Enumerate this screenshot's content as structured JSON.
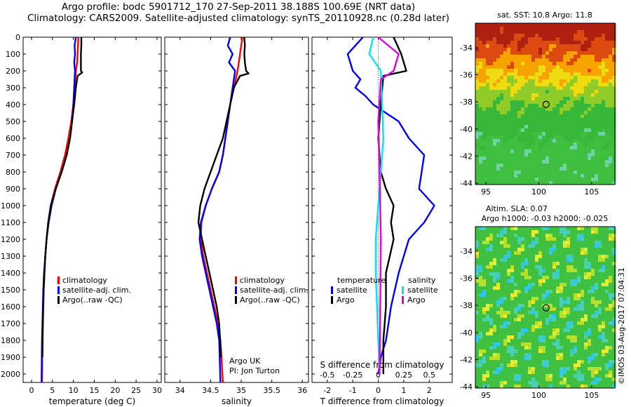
{
  "header": {
    "line1": "Argo profile: bodc 5901712_170 27-Sep-2011 38.188S 100.69E (NRT data)",
    "line2": "Climatology: CARS2009. Satellite-adjusted climatology: synTS_20110928.nc (0.28d later)"
  },
  "timestamp": "©IMOS 03-Aug-2017 07:04:31",
  "colors": {
    "red": "#ff0000",
    "blue": "#0000ff",
    "black": "#000000",
    "cyan": "#00e5ee",
    "magenta": "#e000e0"
  },
  "legends": {
    "temp": [
      "climatology",
      "satellite-adj. clim.",
      "Argo(..raw -QC)"
    ],
    "sal": [
      "climatology",
      "satellite-adj. clim.",
      "Argo(..raw -QC)"
    ],
    "diff_headers": [
      "temperature",
      "salinity"
    ],
    "diff_items": [
      "satellite",
      "Argo",
      "satellite",
      "Argo"
    ]
  },
  "credit": {
    "line1": "Argo UK",
    "line2": "PI: Jon Turton"
  },
  "maps": {
    "sst_title": "sat. SST: 10.8 Argo: 11.8",
    "sla_title1": "Altim. SLA: 0.07",
    "sla_title2": "Argo h1000: -0.03 h2000: -0.025",
    "x_ticks": [
      "95",
      "100",
      "105"
    ],
    "y_ticks": [
      "-34",
      "-36",
      "-38",
      "-40",
      "-42",
      "-44"
    ],
    "marker": {
      "lon": 100.69,
      "lat": -38.188
    }
  },
  "chart_data": [
    {
      "type": "line",
      "name": "temperature-panel",
      "xlabel": "temperature (deg C)",
      "ylabel": "",
      "xlim": [
        -2,
        31
      ],
      "ylim": [
        0,
        2050
      ],
      "x_ticks": [
        "0",
        "5",
        "10",
        "15",
        "20",
        "25",
        "30"
      ],
      "y_ticks": [
        "0",
        "100",
        "200",
        "300",
        "400",
        "500",
        "600",
        "700",
        "800",
        "900",
        "1000",
        "1100",
        "1200",
        "1300",
        "1400",
        "1500",
        "1600",
        "1700",
        "1800",
        "1900",
        "2000"
      ],
      "y_reversed": true,
      "series": [
        {
          "name": "climatology",
          "color": "#ff0000",
          "x": [
            11.2,
            11.1,
            11.0,
            10.9,
            10.6,
            10.3,
            10.0,
            9.5,
            8.8,
            8.0,
            6.9,
            5.6,
            4.6,
            4.0,
            3.6,
            3.3,
            3.1,
            2.9,
            2.8,
            2.7,
            2.6,
            2.5
          ],
          "y": [
            0,
            50,
            100,
            150,
            200,
            300,
            400,
            500,
            600,
            700,
            800,
            900,
            1000,
            1100,
            1200,
            1300,
            1400,
            1500,
            1600,
            1700,
            1800,
            2050
          ]
        },
        {
          "name": "satellite-adj. clim.",
          "color": "#0000ff",
          "x": [
            10.6,
            10.3,
            10.4,
            10.2,
            10.4,
            10.2,
            10.0,
            9.7,
            9.2,
            8.4,
            7.2,
            5.8,
            4.8,
            4.1,
            3.6,
            3.3,
            3.0,
            2.8,
            2.7,
            2.6,
            2.5,
            2.4
          ],
          "y": [
            0,
            50,
            100,
            150,
            200,
            300,
            400,
            500,
            600,
            700,
            800,
            900,
            1000,
            1100,
            1200,
            1300,
            1400,
            1500,
            1600,
            1700,
            1800,
            2050
          ]
        },
        {
          "name": "Argo(..raw -QC)",
          "color": "#000000",
          "x": [
            11.9,
            11.9,
            11.8,
            11.8,
            11.8,
            12.1,
            11.0,
            10.6,
            10.2,
            9.7,
            9.2,
            8.4,
            7.2,
            5.8,
            4.6,
            4.0,
            3.6,
            3.3,
            3.1,
            2.9,
            2.8,
            2.7,
            2.6
          ],
          "y": [
            0,
            50,
            100,
            150,
            200,
            210,
            230,
            300,
            400,
            500,
            600,
            700,
            800,
            900,
            1000,
            1100,
            1200,
            1300,
            1400,
            1500,
            1600,
            1700,
            1900
          ]
        }
      ]
    },
    {
      "type": "line",
      "name": "salinity-panel",
      "xlabel": "salinity",
      "ylabel": "",
      "xlim": [
        33.75,
        36.1
      ],
      "ylim": [
        0,
        2050
      ],
      "x_ticks": [
        "34",
        "34.5",
        "35",
        "35.5",
        "36"
      ],
      "y_reversed": true,
      "series": [
        {
          "name": "climatology",
          "color": "#ff0000",
          "x": [
            35.02,
            35.0,
            34.98,
            34.96,
            34.94,
            34.88,
            34.82,
            34.78,
            34.74,
            34.7,
            34.64,
            34.52,
            34.42,
            34.35,
            34.34,
            34.38,
            34.44,
            34.5,
            34.56,
            34.62,
            34.66,
            34.7
          ],
          "y": [
            0,
            50,
            100,
            150,
            200,
            300,
            400,
            500,
            600,
            700,
            800,
            900,
            1000,
            1100,
            1200,
            1300,
            1400,
            1500,
            1600,
            1700,
            1800,
            2050
          ]
        },
        {
          "name": "satellite-adj. clim.",
          "color": "#0000ff",
          "x": [
            34.82,
            34.78,
            34.86,
            34.8,
            34.9,
            34.86,
            34.82,
            34.78,
            34.74,
            34.7,
            34.64,
            34.52,
            34.42,
            34.34,
            34.32,
            34.36,
            34.42,
            34.48,
            34.54,
            34.6,
            34.64,
            34.66
          ],
          "y": [
            0,
            50,
            100,
            150,
            200,
            300,
            400,
            500,
            600,
            700,
            800,
            900,
            1000,
            1100,
            1200,
            1300,
            1400,
            1500,
            1600,
            1700,
            1800,
            2050
          ]
        },
        {
          "name": "Argo(..raw -QC)",
          "color": "#000000",
          "x": [
            35.05,
            35.06,
            35.05,
            35.06,
            35.08,
            35.12,
            34.98,
            34.88,
            34.82,
            34.76,
            34.7,
            34.6,
            34.5,
            34.4,
            34.33,
            34.3,
            34.36,
            34.42,
            34.48,
            34.54,
            34.6,
            34.64,
            34.67
          ],
          "y": [
            0,
            50,
            100,
            150,
            200,
            215,
            230,
            300,
            400,
            500,
            600,
            700,
            800,
            900,
            1000,
            1100,
            1200,
            1300,
            1400,
            1500,
            1600,
            1700,
            1900
          ]
        }
      ]
    },
    {
      "type": "line",
      "name": "difference-panel",
      "xlabel": "T difference from climatology",
      "xlabel2": "S difference from climatology",
      "xlim": [
        -2.6,
        2.9
      ],
      "ylim": [
        0,
        2050
      ],
      "x_ticks": [
        "-2",
        "-1",
        "0",
        "1",
        "2"
      ],
      "x2_ticks": [
        "-0.5",
        "-0.25",
        "0",
        "0.25",
        "0.5"
      ],
      "y_reversed": true,
      "series": [
        {
          "name": "temperature satellite",
          "color": "#0000ff",
          "x": [
            -0.6,
            -1.2,
            -1.0,
            -0.7,
            -0.9,
            -0.5,
            -0.2,
            0.8,
            1.2,
            1.8,
            1.7,
            1.6,
            2.2,
            1.8,
            1.2,
            0.8,
            0.5,
            0.3,
            0.1,
            0.0
          ],
          "y": [
            0,
            100,
            200,
            250,
            300,
            350,
            400,
            500,
            600,
            700,
            800,
            900,
            1000,
            1100,
            1200,
            1400,
            1600,
            1800,
            1900,
            2000
          ]
        },
        {
          "name": "temperature Argo",
          "color": "#000000",
          "x": [
            0.6,
            0.9,
            1.1,
            0.2,
            0.1,
            0.0,
            0.1,
            0.3,
            0.6,
            0.5,
            0.6,
            0.3,
            0.3,
            0.2,
            0.2,
            0.2
          ],
          "y": [
            0,
            100,
            200,
            230,
            400,
            600,
            800,
            900,
            1000,
            1100,
            1200,
            1400,
            1600,
            1800,
            1900,
            2000
          ]
        },
        {
          "name": "salinity satellite",
          "color": "#00e5ee",
          "x": [
            -0.2,
            -0.35,
            0.1,
            0.2,
            0.1,
            0.05,
            0.0,
            -0.1,
            -0.1,
            -0.05,
            0.0,
            0.05
          ],
          "y": [
            0,
            100,
            200,
            600,
            800,
            900,
            1000,
            1200,
            1400,
            1600,
            1800,
            2000
          ]
        },
        {
          "name": "salinity Argo",
          "color": "#e000e0",
          "x": [
            0.0,
            0.8,
            0.6,
            0.1,
            0.0,
            0.05,
            0.1,
            0.05
          ],
          "y": [
            0,
            100,
            200,
            250,
            500,
            800,
            1200,
            2000
          ]
        }
      ]
    }
  ]
}
